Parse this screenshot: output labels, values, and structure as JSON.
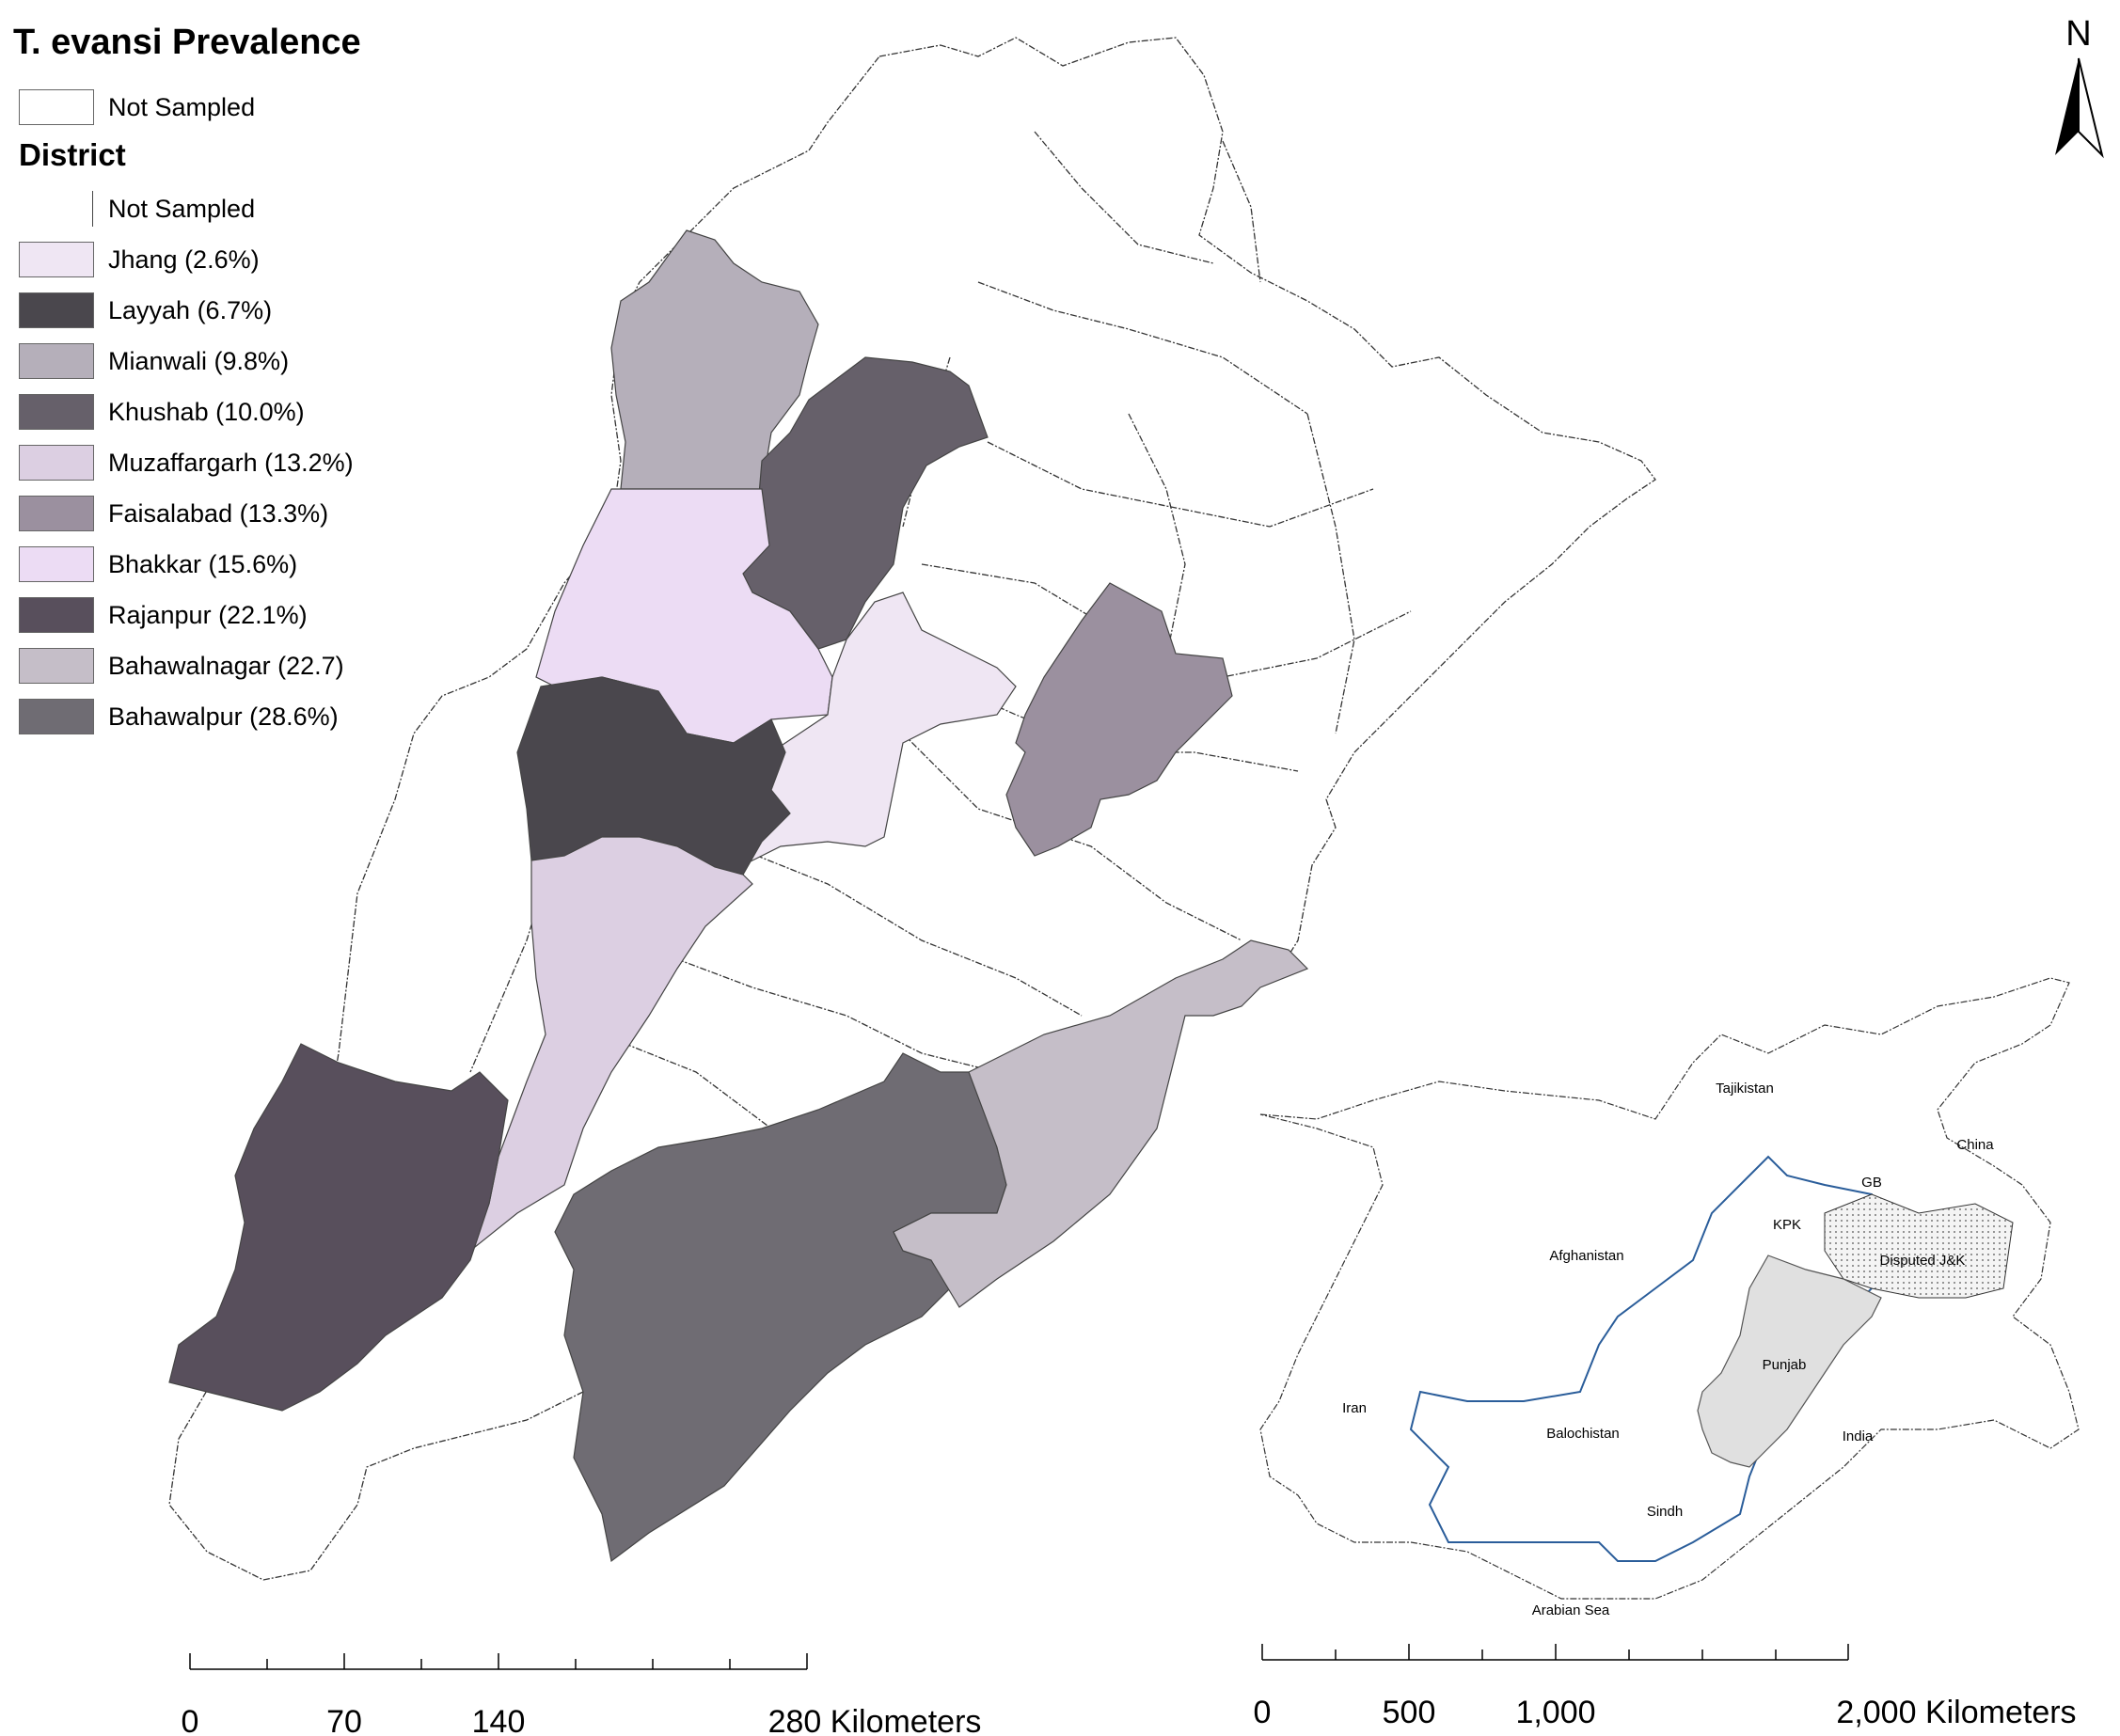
{
  "legend": {
    "title": "T. evansi Prevalence",
    "not_sampled_top": "Not Sampled",
    "district_heading": "District",
    "items": [
      {
        "label": "Not Sampled",
        "color": "#ffffff"
      },
      {
        "label": "Jhang (2.6%)",
        "color": "#efe6f3"
      },
      {
        "label": "Layyah (6.7%)",
        "color": "#4a474d"
      },
      {
        "label": "Mianwali (9.8%)",
        "color": "#b5afba"
      },
      {
        "label": "Khushab (10.0%)",
        "color": "#66606a"
      },
      {
        "label": "Muzaffargarh (13.2%)",
        "color": "#dccfe2"
      },
      {
        "label": "Faisalabad (13.3%)",
        "color": "#9b909f"
      },
      {
        "label": "Bhakkar (15.6%)",
        "color": "#ecdcf4"
      },
      {
        "label": "Rajanpur (22.1%)",
        "color": "#584f5c"
      },
      {
        "label": "Bahawalnagar (22.7)",
        "color": "#c5bec8"
      },
      {
        "label": "Bahawalpur (28.6%)",
        "color": "#6f6c73"
      }
    ]
  },
  "north_arrow": {
    "label": "N"
  },
  "scale_main": {
    "ticks": [
      "0",
      "70",
      "140",
      "280 Kilometers"
    ]
  },
  "scale_inset": {
    "ticks": [
      "0",
      "500",
      "1,000",
      "2,000 Kilometers"
    ]
  },
  "inset": {
    "labels": {
      "tajikistan": "Tajikistan",
      "china": "China",
      "gb": "GB",
      "kpk": "KPK",
      "afghanistan": "Afghanistan",
      "disputed": "Disputed J&K",
      "punjab": "Punjab",
      "iran": "Iran",
      "balochistan": "Balochistan",
      "india": "India",
      "sindh": "Sindh",
      "arabian_sea": "Arabian Sea"
    }
  }
}
